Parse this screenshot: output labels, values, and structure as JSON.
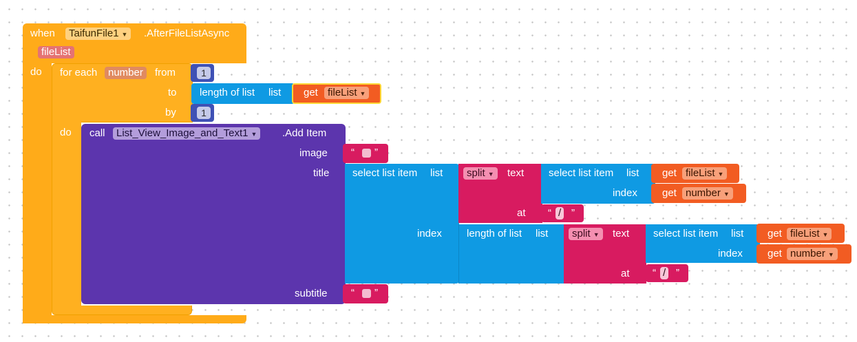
{
  "event": {
    "when_label": "when",
    "component": "TaifunFile1",
    "event_name": ".AfterFileListAsync",
    "param": "fileList",
    "do_label": "do"
  },
  "for_each": {
    "label": "for each",
    "var": "number",
    "from_label": "from",
    "from_value": "1",
    "to_label": "to",
    "by_label": "by",
    "by_value": "1",
    "do_label": "do"
  },
  "length_of_list": {
    "label": "length of list",
    "list_label": "list"
  },
  "get_label": "get",
  "filelist_var": "fileList",
  "number_var": "number",
  "call": {
    "call_label": "call",
    "component": "List_View_Image_and_Text1",
    "method": ".Add Item",
    "image_label": "image",
    "title_label": "title",
    "subtitle_label": "subtitle"
  },
  "select_list_item": {
    "label": "select list item",
    "list_label": "list",
    "index_label": "index"
  },
  "split": {
    "label": "split",
    "text_label": "text",
    "at_label": "at"
  },
  "text_string": {
    "open_quote": "“",
    "close_quote": "”",
    "slash": "/",
    "empty": ""
  },
  "colors": {
    "event": "#ffab19",
    "control": "#ffab19",
    "component_call": "#5c35ad",
    "list": "#0f9ae3",
    "text": "#d81b60",
    "variable": "#f25c22",
    "math": "#3f51b5"
  }
}
